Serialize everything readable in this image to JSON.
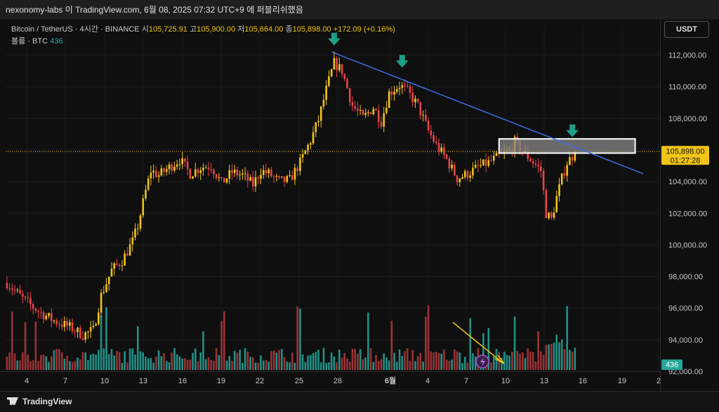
{
  "window_title": "nexonomy-labs 이 TradingView.com, 6월 08, 2025 07:32 UTC+9 에 퍼블리쉬했음",
  "legend": {
    "symbol": "Bitcoin / TetherUS · 4시간 · BINANCE",
    "open_label": "시",
    "open": "105,725.91",
    "high_label": "고",
    "high": "105,900.00",
    "low_label": "저",
    "low": "105,664.00",
    "close_label": "종",
    "close": "105,898.00",
    "change": "+172.09 (+0.16%)",
    "volume_label": "볼륨 · BTC",
    "volume_value": "436"
  },
  "currency_button": "USDT",
  "price_tag": {
    "value": "105,898.00",
    "countdown": "01:27:28"
  },
  "volume_tag": "436",
  "footer_brand": "TradingView",
  "colors": {
    "up": "#f0c419",
    "down": "#e8444b",
    "trendline": "#3d6ee8",
    "arrow": "#1e9e89",
    "volume_up": "#26a69a",
    "volume_down": "#b2383c"
  },
  "chart_data": {
    "type": "candlestick",
    "ylim": [
      92000,
      113000
    ],
    "y_ticks": [
      "112,000.00",
      "110,000.00",
      "108,000.00",
      "106,000.00",
      "104,000.00",
      "102,000.00",
      "100,000.00",
      "98,000.00",
      "96,000.00",
      "94,000.00",
      "92,000.00"
    ],
    "x_ticks": [
      "4",
      "7",
      "10",
      "13",
      "16",
      "19",
      "22",
      "25",
      "28",
      "6월",
      "4",
      "7",
      "10",
      "13",
      "16",
      "19",
      "2"
    ],
    "price_path": [
      [
        0,
        97600
      ],
      [
        6,
        96600
      ],
      [
        12,
        95800
      ],
      [
        18,
        95200
      ],
      [
        24,
        94800
      ],
      [
        29,
        94300
      ],
      [
        33,
        94600
      ],
      [
        36,
        96800
      ],
      [
        40,
        98400
      ],
      [
        44,
        99000
      ],
      [
        48,
        100200
      ],
      [
        50,
        101200
      ],
      [
        53,
        103400
      ],
      [
        55,
        104700
      ],
      [
        58,
        104400
      ],
      [
        62,
        104900
      ],
      [
        66,
        105400
      ],
      [
        70,
        104500
      ],
      [
        74,
        104900
      ],
      [
        78,
        105000
      ],
      [
        82,
        103900
      ],
      [
        86,
        104600
      ],
      [
        90,
        104400
      ],
      [
        94,
        103800
      ],
      [
        97,
        104700
      ],
      [
        100,
        104500
      ],
      [
        104,
        104000
      ],
      [
        108,
        104100
      ],
      [
        112,
        105200
      ],
      [
        116,
        106600
      ],
      [
        119,
        107900
      ],
      [
        122,
        109800
      ],
      [
        125,
        111500
      ],
      [
        128,
        111000
      ],
      [
        132,
        108800
      ],
      [
        136,
        108000
      ],
      [
        140,
        108700
      ],
      [
        143,
        107800
      ],
      [
        146,
        109600
      ],
      [
        150,
        110100
      ],
      [
        153,
        109700
      ],
      [
        157,
        108800
      ],
      [
        161,
        107200
      ],
      [
        164,
        106300
      ],
      [
        168,
        105400
      ],
      [
        172,
        104200
      ],
      [
        176,
        104500
      ],
      [
        180,
        104900
      ],
      [
        184,
        105200
      ],
      [
        188,
        105600
      ],
      [
        192,
        105900
      ],
      [
        194,
        106500
      ],
      [
        197,
        105900
      ],
      [
        200,
        105400
      ],
      [
        204,
        104700
      ],
      [
        206,
        102000
      ],
      [
        208,
        101600
      ],
      [
        210,
        103000
      ],
      [
        212,
        104200
      ],
      [
        214,
        105200
      ],
      [
        216,
        105600
      ],
      [
        217,
        105898
      ]
    ],
    "resistance_zone": {
      "from": 105800,
      "to": 106700
    },
    "trendline": {
      "from": [
        124,
        112200
      ],
      "to": [
        243,
        104500
      ]
    },
    "volume_trend": "declining"
  }
}
